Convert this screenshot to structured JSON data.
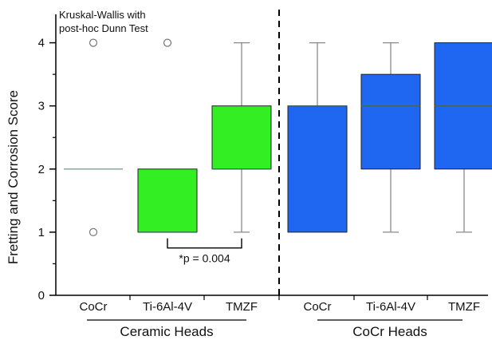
{
  "chart_data": {
    "type": "boxplot",
    "ylabel": "Fretting and Corrosion Score",
    "ylim": [
      0,
      4.45
    ],
    "yticks": [
      0,
      1,
      2,
      3,
      4
    ],
    "annotation": [
      "Kruskal-Wallis with",
      "post-hoc Dunn Test"
    ],
    "groups": [
      {
        "label": "Ceramic Heads",
        "color": "#33ee22"
      },
      {
        "label": "CoCr Heads",
        "color": "#1f66f0"
      }
    ],
    "boxes": [
      {
        "category": "CoCr",
        "group": 0,
        "q1": 2,
        "median": 2,
        "q3": 2,
        "whisker_low": 2,
        "whisker_high": 2,
        "outliers": [
          4,
          1
        ]
      },
      {
        "category": "Ti-6Al-4V",
        "group": 0,
        "q1": 1,
        "median": 1,
        "q3": 2,
        "whisker_low": 1,
        "whisker_high": 2,
        "outliers": [
          4
        ]
      },
      {
        "category": "TMZF",
        "group": 0,
        "q1": 2,
        "median": 2,
        "q3": 3,
        "whisker_low": 1,
        "whisker_high": 4,
        "outliers": []
      },
      {
        "category": "CoCr",
        "group": 1,
        "q1": 1,
        "median": 3,
        "q3": 3,
        "whisker_low": 1,
        "whisker_high": 4,
        "outliers": []
      },
      {
        "category": "Ti-6Al-4V",
        "group": 1,
        "q1": 2,
        "median": 3,
        "q3": 3.5,
        "whisker_low": 1,
        "whisker_high": 4,
        "outliers": []
      },
      {
        "category": "TMZF",
        "group": 1,
        "q1": 2,
        "median": 3,
        "q3": 4,
        "whisker_low": 1,
        "whisker_high": 4,
        "outliers": []
      }
    ],
    "significance": {
      "label": "*p = 0.004",
      "between": [
        1,
        2
      ],
      "y": 0.75
    }
  }
}
